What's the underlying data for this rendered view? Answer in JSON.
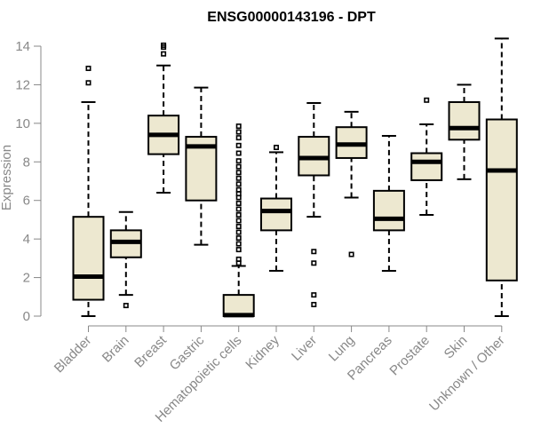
{
  "chart_data": {
    "type": "boxplot",
    "title": "ENSG00000143196 - DPT",
    "xlabel": "",
    "ylabel": "Expression",
    "ylim": [
      0,
      14
    ],
    "yticks": [
      0,
      2,
      4,
      6,
      8,
      10,
      12,
      14
    ],
    "grid": false,
    "colors": {
      "box_fill": "#EDE8D0",
      "stroke": "#000000",
      "axis": "#888888"
    },
    "categories": [
      "Bladder",
      "Brain",
      "Breast",
      "Gastric",
      "Hematopoietic cells",
      "Kidney",
      "Liver",
      "Lung",
      "Pancreas",
      "Prostate",
      "Skin",
      "Unknown / Other"
    ],
    "boxes": [
      {
        "name": "Bladder",
        "min": 0.0,
        "q1": 0.85,
        "median": 2.05,
        "q3": 5.15,
        "max": 11.1,
        "outliers": [
          12.1,
          12.85
        ]
      },
      {
        "name": "Brain",
        "min": 1.1,
        "q1": 3.05,
        "median": 3.85,
        "q3": 4.45,
        "max": 5.4,
        "outliers": [
          0.55
        ]
      },
      {
        "name": "Breast",
        "min": 6.4,
        "q1": 8.4,
        "median": 9.4,
        "q3": 10.4,
        "max": 13.0,
        "outliers": [
          13.6,
          13.95,
          14.05
        ]
      },
      {
        "name": "Gastric",
        "min": 3.7,
        "q1": 6.0,
        "median": 8.8,
        "q3": 9.3,
        "max": 11.85,
        "outliers": []
      },
      {
        "name": "Hematopoietic cells",
        "min": 0.0,
        "q1": 0.0,
        "median": 0.05,
        "q3": 1.1,
        "max": 2.6,
        "outliers": [
          2.75,
          2.95,
          3.45,
          3.75,
          4.05,
          4.35,
          4.65,
          4.95,
          5.25,
          5.55,
          5.85,
          6.15,
          6.35,
          6.55,
          6.85,
          7.15,
          7.45,
          7.75,
          8.05,
          8.45,
          8.85,
          9.25,
          9.55,
          9.85
        ]
      },
      {
        "name": "Kidney",
        "min": 2.35,
        "q1": 4.45,
        "median": 5.45,
        "q3": 6.1,
        "max": 8.5,
        "outliers": [
          8.75
        ]
      },
      {
        "name": "Liver",
        "min": 5.15,
        "q1": 7.3,
        "median": 8.2,
        "q3": 9.3,
        "max": 11.05,
        "outliers": [
          3.35,
          2.75,
          1.1,
          0.6
        ]
      },
      {
        "name": "Lung",
        "min": 6.15,
        "q1": 8.2,
        "median": 8.9,
        "q3": 9.8,
        "max": 10.6,
        "outliers": [
          3.2
        ]
      },
      {
        "name": "Pancreas",
        "min": 2.35,
        "q1": 4.45,
        "median": 5.05,
        "q3": 6.5,
        "max": 9.35,
        "outliers": []
      },
      {
        "name": "Prostate",
        "min": 5.25,
        "q1": 7.05,
        "median": 8.0,
        "q3": 8.45,
        "max": 9.95,
        "outliers": [
          11.2
        ]
      },
      {
        "name": "Skin",
        "min": 7.1,
        "q1": 9.15,
        "median": 9.75,
        "q3": 11.1,
        "max": 12.0,
        "outliers": []
      },
      {
        "name": "Unknown / Other",
        "min": 0.0,
        "q1": 1.85,
        "median": 7.55,
        "q3": 10.2,
        "max": 14.4,
        "outliers": []
      }
    ]
  }
}
